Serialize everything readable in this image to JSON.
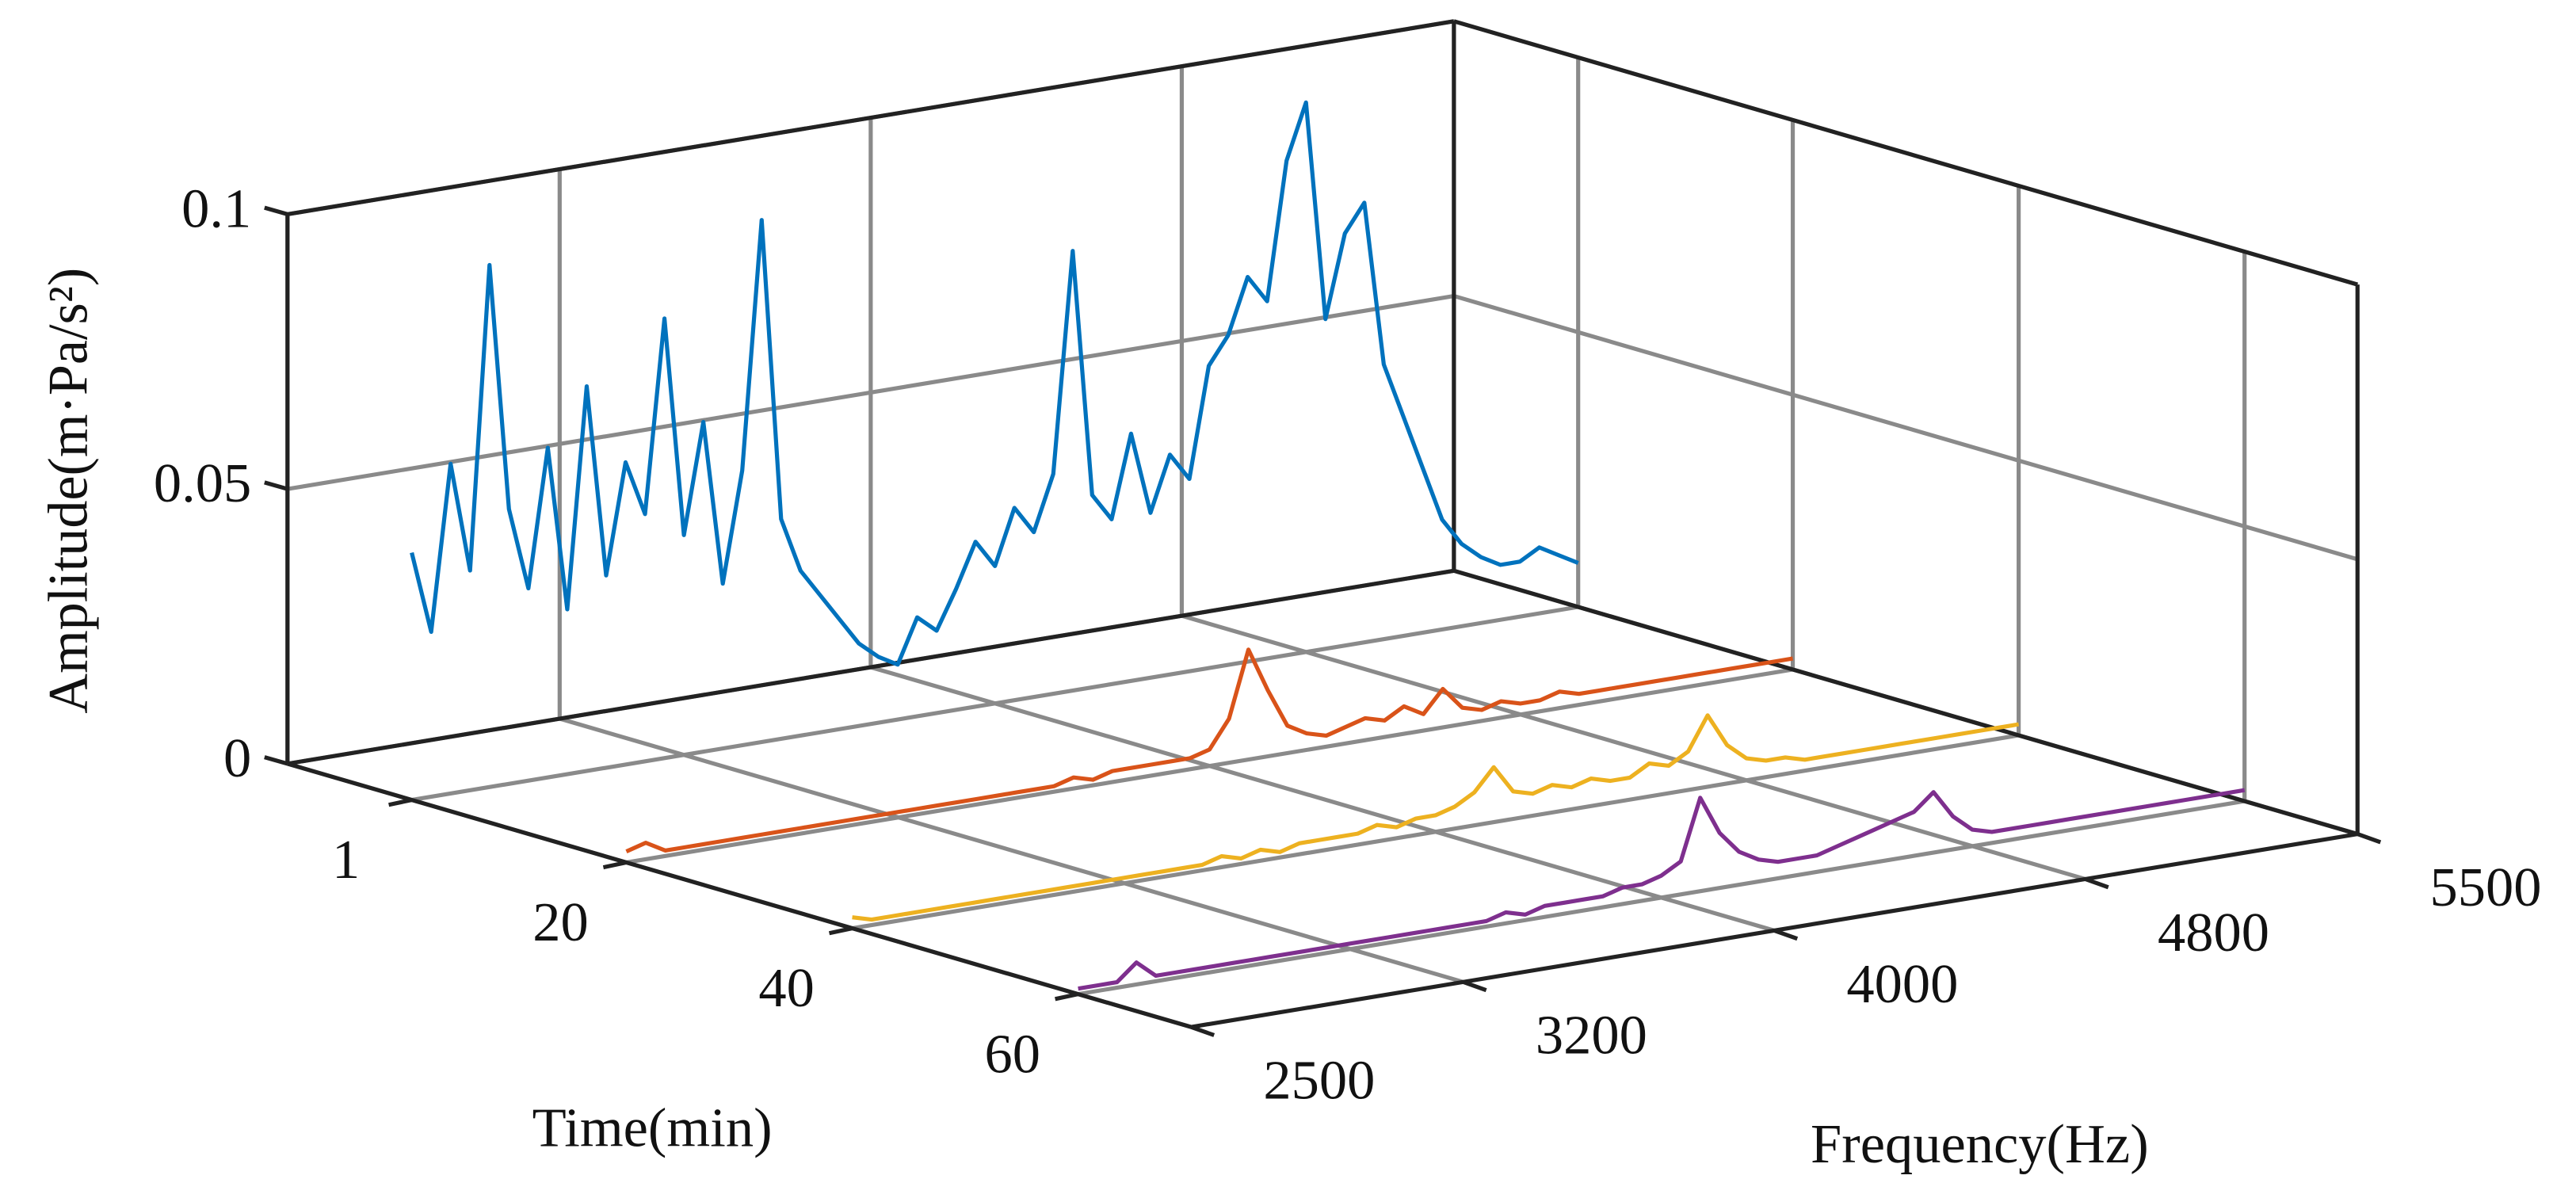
{
  "chart_data": {
    "type": "waterfall3d",
    "xlabel": "Frequency(Hz)",
    "ylabel": "Time(min)",
    "zlabel": "Amplitude(m·Pa/s²)",
    "xlim": [
      2500,
      5500
    ],
    "xticks": [
      2500,
      3200,
      4000,
      4800,
      5500
    ],
    "ylim": [
      -10,
      70
    ],
    "yticks": [
      1,
      20,
      40,
      60
    ],
    "zlim": [
      0,
      0.1
    ],
    "zticks": [
      0,
      0.05,
      0.1
    ],
    "grid": true,
    "x": [
      2500,
      2550,
      2600,
      2650,
      2700,
      2750,
      2800,
      2850,
      2900,
      2950,
      3000,
      3050,
      3100,
      3150,
      3200,
      3250,
      3300,
      3350,
      3400,
      3450,
      3500,
      3550,
      3600,
      3650,
      3700,
      3750,
      3800,
      3850,
      3900,
      3950,
      4000,
      4050,
      4100,
      4150,
      4200,
      4250,
      4300,
      4350,
      4400,
      4450,
      4500,
      4550,
      4600,
      4650,
      4700,
      4750,
      4800,
      4850,
      4900,
      4950,
      5000,
      5050,
      5100,
      5150,
      5200,
      5250,
      5300,
      5350,
      5400,
      5450,
      5500
    ],
    "series": [
      {
        "time": 1,
        "color": "#0072BD",
        "values": [
          0.045,
          0.03,
          0.06,
          0.04,
          0.095,
          0.05,
          0.035,
          0.06,
          0.03,
          0.07,
          0.035,
          0.055,
          0.045,
          0.08,
          0.04,
          0.06,
          0.03,
          0.05,
          0.095,
          0.04,
          0.03,
          0.025,
          0.02,
          0.015,
          0.012,
          0.01,
          0.018,
          0.015,
          0.022,
          0.03,
          0.025,
          0.035,
          0.03,
          0.04,
          0.08,
          0.035,
          0.03,
          0.045,
          0.03,
          0.04,
          0.035,
          0.055,
          0.06,
          0.07,
          0.065,
          0.09,
          0.1,
          0.06,
          0.075,
          0.08,
          0.05,
          0.04,
          0.03,
          0.02,
          0.015,
          0.012,
          0.01,
          0.01,
          0.012,
          0.01,
          0.008
        ]
      },
      {
        "time": 20,
        "color": "#D95319",
        "values": [
          0.002,
          0.003,
          0.001,
          0.001,
          0.001,
          0.001,
          0.001,
          0.001,
          0.001,
          0.001,
          0.001,
          0.001,
          0.001,
          0.001,
          0.001,
          0.001,
          0.001,
          0.001,
          0.001,
          0.001,
          0.001,
          0.001,
          0.001,
          0.002,
          0.001,
          0.002,
          0.002,
          0.002,
          0.002,
          0.002,
          0.003,
          0.008,
          0.02,
          0.012,
          0.005,
          0.003,
          0.002,
          0.003,
          0.004,
          0.003,
          0.005,
          0.003,
          0.007,
          0.003,
          0.002,
          0.003,
          0.002,
          0.002,
          0.003,
          0.002,
          0.002,
          0.002,
          0.002,
          0.002,
          0.002,
          0.002,
          0.002,
          0.002,
          0.002,
          0.002,
          0.002
        ]
      },
      {
        "time": 40,
        "color": "#EDB120",
        "values": [
          0.002,
          0.001,
          0.001,
          0.001,
          0.001,
          0.001,
          0.001,
          0.001,
          0.001,
          0.001,
          0.001,
          0.001,
          0.001,
          0.001,
          0.001,
          0.001,
          0.001,
          0.001,
          0.001,
          0.002,
          0.001,
          0.002,
          0.001,
          0.002,
          0.002,
          0.002,
          0.002,
          0.003,
          0.002,
          0.003,
          0.003,
          0.004,
          0.006,
          0.01,
          0.005,
          0.004,
          0.005,
          0.004,
          0.005,
          0.004,
          0.004,
          0.006,
          0.005,
          0.007,
          0.013,
          0.007,
          0.004,
          0.003,
          0.003,
          0.002,
          0.002,
          0.002,
          0.002,
          0.002,
          0.002,
          0.002,
          0.002,
          0.002,
          0.002,
          0.002,
          0.002
        ]
      },
      {
        "time": 60,
        "color": "#7E2F8E",
        "values": [
          0.001,
          0.001,
          0.001,
          0.004,
          0.001,
          0.001,
          0.001,
          0.001,
          0.001,
          0.001,
          0.001,
          0.001,
          0.001,
          0.001,
          0.001,
          0.001,
          0.001,
          0.001,
          0.001,
          0.001,
          0.001,
          0.001,
          0.002,
          0.001,
          0.002,
          0.002,
          0.002,
          0.002,
          0.003,
          0.003,
          0.004,
          0.006,
          0.017,
          0.01,
          0.006,
          0.004,
          0.003,
          0.003,
          0.003,
          0.004,
          0.005,
          0.006,
          0.007,
          0.008,
          0.011,
          0.006,
          0.003,
          0.002,
          0.002,
          0.002,
          0.002,
          0.002,
          0.002,
          0.002,
          0.002,
          0.002,
          0.002,
          0.002,
          0.002,
          0.002,
          0.002
        ]
      }
    ]
  }
}
